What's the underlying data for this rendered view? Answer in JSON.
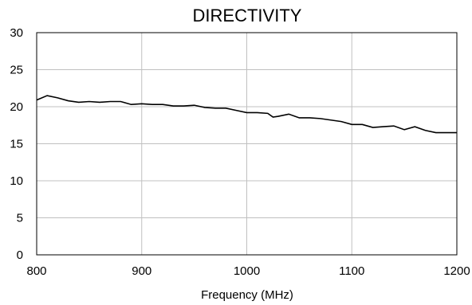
{
  "chart_data": {
    "type": "line",
    "title": "DIRECTIVITY",
    "xlabel": "Frequency (MHz)",
    "ylabel": "",
    "xlim": [
      800,
      1200
    ],
    "ylim": [
      0,
      30
    ],
    "x_ticks": [
      800,
      900,
      1000,
      1100,
      1200
    ],
    "y_ticks": [
      0,
      5,
      10,
      15,
      20,
      25,
      30
    ],
    "grid": true,
    "legend": "none",
    "colors": {
      "line": "#000000",
      "grid": "#c0c0c0",
      "background": "#ffffff"
    },
    "series": [
      {
        "x": [
          800,
          810,
          820,
          830,
          840,
          850,
          860,
          870,
          880,
          890,
          900,
          910,
          920,
          930,
          940,
          950,
          960,
          970,
          980,
          990,
          1000,
          1010,
          1020,
          1025,
          1030,
          1040,
          1050,
          1060,
          1070,
          1080,
          1090,
          1100,
          1110,
          1120,
          1130,
          1140,
          1150,
          1160,
          1170,
          1180,
          1190,
          1200
        ],
        "y": [
          20.9,
          21.5,
          21.2,
          20.8,
          20.6,
          20.7,
          20.6,
          20.7,
          20.7,
          20.3,
          20.4,
          20.3,
          20.3,
          20.1,
          20.1,
          20.2,
          19.9,
          19.8,
          19.8,
          19.5,
          19.2,
          19.2,
          19.1,
          18.6,
          18.7,
          19.0,
          18.5,
          18.5,
          18.4,
          18.2,
          18.0,
          17.6,
          17.6,
          17.2,
          17.3,
          17.4,
          16.9,
          17.3,
          16.8,
          16.5,
          16.5,
          16.5
        ]
      }
    ]
  }
}
